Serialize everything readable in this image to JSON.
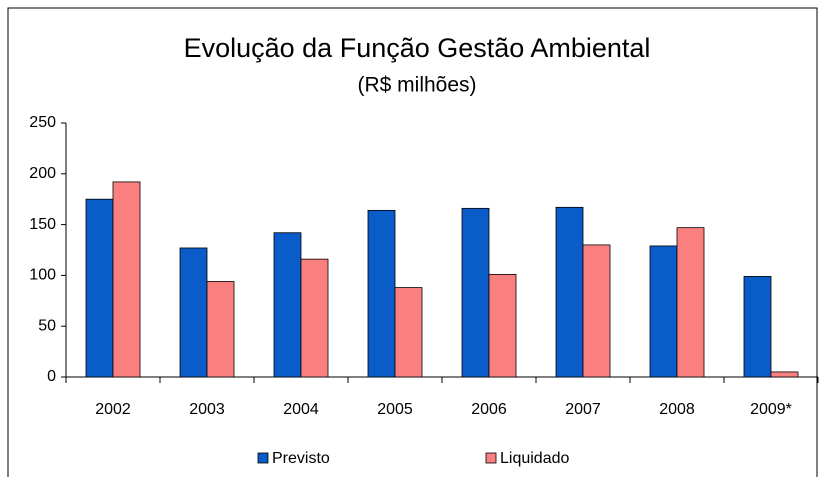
{
  "chart_data": {
    "type": "bar",
    "title": "Evolução da Função Gestão Ambiental",
    "subtitle": "(R$ milhões)",
    "categories": [
      "2002",
      "2003",
      "2004",
      "2005",
      "2006",
      "2007",
      "2008",
      "2009*"
    ],
    "series": [
      {
        "name": "Previsto",
        "color": "#0a5cc8",
        "values": [
          175,
          127,
          142,
          164,
          166,
          167,
          129,
          99
        ]
      },
      {
        "name": "Liquidado",
        "color": "#fa8080",
        "values": [
          192,
          94,
          116,
          88,
          101,
          130,
          147,
          5
        ]
      }
    ],
    "ylim": [
      0,
      250
    ],
    "yticks": [
      0,
      50,
      100,
      150,
      200,
      250
    ],
    "grid": false,
    "legend": "bottom"
  }
}
